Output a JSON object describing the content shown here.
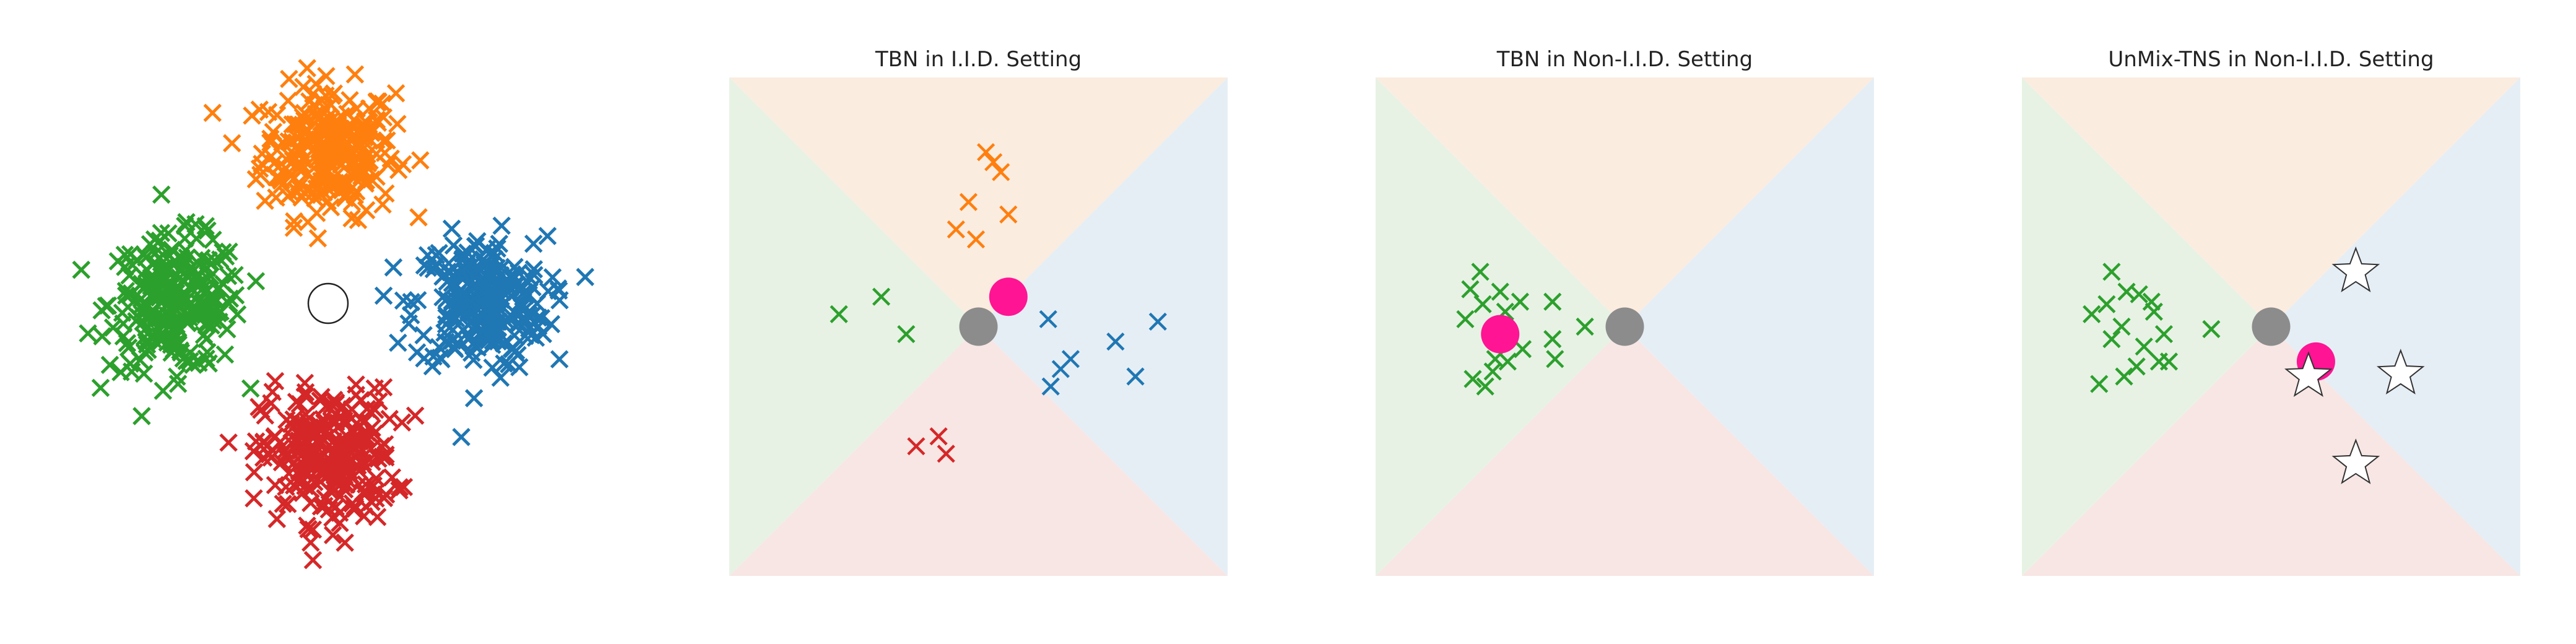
{
  "figure": {
    "colors": {
      "blue": "#1f77b4",
      "orange": "#ff7f0e",
      "green": "#2ca02c",
      "red": "#d62728",
      "magenta": "#ff1493",
      "gray": "#8c8c8c",
      "region_blue": "#e6eef5",
      "region_orange": "#fbece0",
      "region_green": "#e7f2e5",
      "region_red": "#f7e6e4"
    },
    "panels": [
      {
        "id": "clusters",
        "title": ""
      },
      {
        "id": "tbn-iid",
        "title": "TBN in I.I.D. Setting"
      },
      {
        "id": "tbn-noniid",
        "title": "TBN in Non-I.I.D. Setting"
      },
      {
        "id": "unmix-noniid",
        "title": "UnMix-TNS in Non-I.I.D. Setting"
      }
    ]
  },
  "chart_data": [
    {
      "type": "scatter",
      "title": "",
      "axes_visible": false,
      "xlim": [
        -3.4,
        3.4
      ],
      "ylim": [
        -3.4,
        3.4
      ],
      "cluster_centers": [
        {
          "color": "orange",
          "x": 0.0,
          "y": 2.2
        },
        {
          "color": "green",
          "x": -2.2,
          "y": 0.0
        },
        {
          "color": "blue",
          "x": 2.2,
          "y": 0.0
        },
        {
          "color": "red",
          "x": 0.0,
          "y": -2.2
        }
      ],
      "points_per_cluster": 260,
      "marker": "x",
      "open_circle": {
        "x": 0.0,
        "y": 0.0
      }
    },
    {
      "type": "scatter",
      "title": "TBN in I.I.D. Setting",
      "axes_visible": false,
      "xlim": [
        -1,
        1
      ],
      "ylim": [
        -1,
        1
      ],
      "background_regions": "four class regions split by diagonals",
      "series": [
        {
          "name": "",
          "color": "orange",
          "marker": "x",
          "points": [
            [
              0.03,
              0.7
            ],
            [
              0.06,
              0.66
            ],
            [
              0.09,
              0.62
            ],
            [
              -0.04,
              0.5
            ],
            [
              0.12,
              0.45
            ],
            [
              -0.01,
              0.35
            ],
            [
              -0.09,
              0.39
            ]
          ]
        },
        {
          "name": "",
          "color": "green",
          "marker": "x",
          "points": [
            [
              -0.56,
              0.05
            ],
            [
              -0.39,
              0.12
            ],
            [
              -0.29,
              -0.03
            ]
          ]
        },
        {
          "name": "",
          "color": "blue",
          "marker": "x",
          "points": [
            [
              0.28,
              0.03
            ],
            [
              0.55,
              -0.06
            ],
            [
              0.72,
              0.02
            ],
            [
              0.37,
              -0.13
            ],
            [
              0.33,
              -0.17
            ],
            [
              0.29,
              -0.24
            ],
            [
              0.63,
              -0.2
            ]
          ]
        },
        {
          "name": "",
          "color": "red",
          "marker": "x",
          "points": [
            [
              -0.25,
              -0.48
            ],
            [
              -0.16,
              -0.44
            ],
            [
              -0.13,
              -0.51
            ]
          ]
        }
      ],
      "markers": [
        {
          "kind": "circle",
          "color": "magenta",
          "x": 0.12,
          "y": 0.12
        },
        {
          "kind": "circle",
          "color": "gray",
          "x": 0.0,
          "y": 0.0
        }
      ]
    },
    {
      "type": "scatter",
      "title": "TBN in Non-I.I.D. Setting",
      "axes_visible": false,
      "xlim": [
        -1,
        1
      ],
      "ylim": [
        -1,
        1
      ],
      "background_regions": "four class regions split by diagonals",
      "series": [
        {
          "name": "",
          "color": "green",
          "marker": "x",
          "points": [
            [
              -0.58,
              0.22
            ],
            [
              -0.62,
              0.15
            ],
            [
              -0.5,
              0.14
            ],
            [
              -0.42,
              0.1
            ],
            [
              -0.57,
              0.09
            ],
            [
              -0.48,
              0.06
            ],
            [
              -0.64,
              0.03
            ],
            [
              -0.29,
              0.1
            ],
            [
              -0.16,
              0.0
            ],
            [
              -0.29,
              -0.05
            ],
            [
              -0.41,
              -0.09
            ],
            [
              -0.28,
              -0.13
            ],
            [
              -0.52,
              -0.13
            ],
            [
              -0.61,
              -0.21
            ],
            [
              -0.53,
              -0.18
            ],
            [
              -0.47,
              -0.14
            ],
            [
              -0.56,
              -0.24
            ]
          ]
        }
      ],
      "markers": [
        {
          "kind": "circle",
          "color": "magenta",
          "x": -0.5,
          "y": -0.03
        },
        {
          "kind": "circle",
          "color": "gray",
          "x": 0.0,
          "y": 0.0
        }
      ]
    },
    {
      "type": "scatter",
      "title": "UnMix-TNS in Non-I.I.D. Setting",
      "axes_visible": false,
      "xlim": [
        -1,
        1
      ],
      "ylim": [
        -1,
        1
      ],
      "background_regions": "four class regions split by diagonals",
      "series": [
        {
          "name": "",
          "color": "green",
          "marker": "x",
          "points": [
            [
              -0.64,
              0.22
            ],
            [
              -0.58,
              0.14
            ],
            [
              -0.53,
              0.13
            ],
            [
              -0.48,
              0.1
            ],
            [
              -0.66,
              0.09
            ],
            [
              -0.47,
              0.06
            ],
            [
              -0.72,
              0.05
            ],
            [
              -0.6,
              0.0
            ],
            [
              -0.64,
              -0.05
            ],
            [
              -0.51,
              -0.08
            ],
            [
              -0.45,
              -0.14
            ],
            [
              -0.54,
              -0.16
            ],
            [
              -0.41,
              -0.14
            ],
            [
              -0.59,
              -0.2
            ],
            [
              -0.69,
              -0.23
            ],
            [
              -0.43,
              -0.03
            ],
            [
              -0.24,
              -0.01
            ]
          ]
        }
      ],
      "markers": [
        {
          "kind": "circle",
          "color": "magenta",
          "x": 0.18,
          "y": -0.14
        },
        {
          "kind": "circle",
          "color": "gray",
          "x": 0.0,
          "y": 0.0
        },
        {
          "kind": "star",
          "color": "white",
          "x": 0.34,
          "y": 0.22
        },
        {
          "kind": "star",
          "color": "white",
          "x": 0.52,
          "y": -0.19
        },
        {
          "kind": "star",
          "color": "white",
          "x": 0.15,
          "y": -0.2
        },
        {
          "kind": "star",
          "color": "white",
          "x": 0.34,
          "y": -0.55
        }
      ]
    }
  ]
}
